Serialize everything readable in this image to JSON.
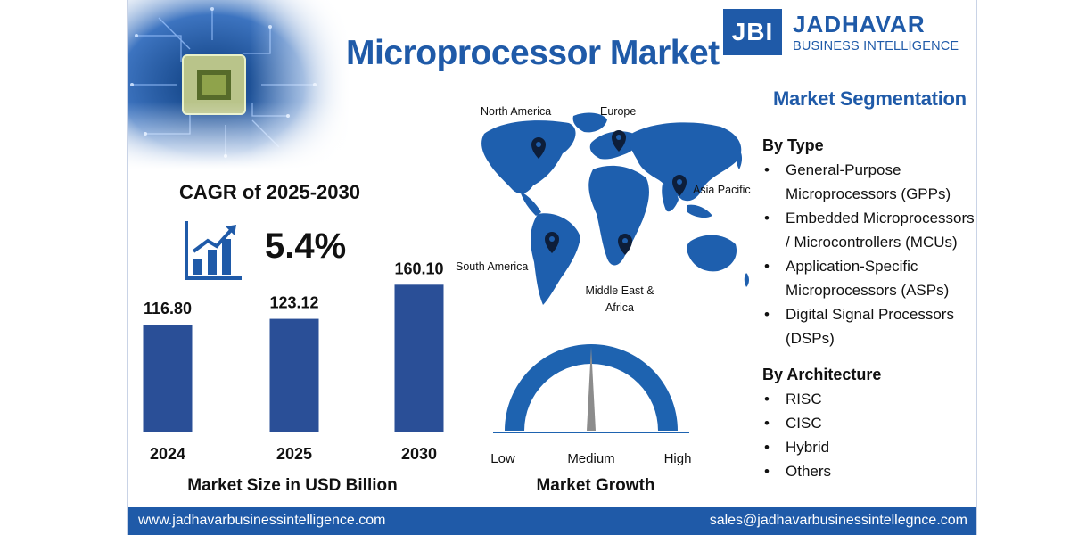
{
  "title": "Microprocessor Market",
  "logo": {
    "mark": "JBI",
    "name": "JADHAVAR",
    "subtitle": "BUSINESS INTELLIGENCE"
  },
  "cagr": {
    "title": "CAGR of 2025-2030",
    "value": "5.4%",
    "icon": "growth-chart-icon"
  },
  "chart_data": [
    {
      "type": "bar",
      "categories": [
        "2024",
        "2025",
        "2030"
      ],
      "values": [
        116.8,
        123.12,
        160.1
      ],
      "value_labels": [
        "116.80",
        "123.12",
        "160.10"
      ],
      "title": "",
      "xlabel": "Market Size in USD Billion",
      "ylabel": "",
      "bar_color": "#2a4f97"
    },
    {
      "type": "gauge",
      "title": "Market Growth",
      "labels": [
        "Low",
        "Medium",
        "High"
      ],
      "reading": "Medium",
      "needle_fraction": 0.5
    }
  ],
  "map": {
    "regions": [
      "North America",
      "Europe",
      "Asia Pacific",
      "South America",
      "Middle East & Africa"
    ],
    "icon": "world-map-icon",
    "pin_icon": "location-pin-icon"
  },
  "segmentation": {
    "title": "Market Segmentation",
    "groups": [
      {
        "name": "By Type",
        "items": [
          "General-Purpose Microprocessors (GPPs)",
          "Embedded Microprocessors / Microcontrollers (MCUs)",
          "Application-Specific Microprocessors (ASPs)",
          "Digital Signal Processors (DSPs)"
        ]
      },
      {
        "name": "By Architecture",
        "items": [
          "RISC",
          "CISC",
          "Hybrid",
          "Others"
        ]
      }
    ]
  },
  "footer": {
    "website": "www.jadhavarbusinessintelligence.com",
    "email": "sales@jadhavarbusinessintellegnce.com"
  },
  "colors": {
    "brand": "#1f5aa8",
    "bar": "#2a4f97",
    "map": "#1e5fae",
    "gauge": "#1e63b0",
    "needle": "#8c8c8c"
  }
}
